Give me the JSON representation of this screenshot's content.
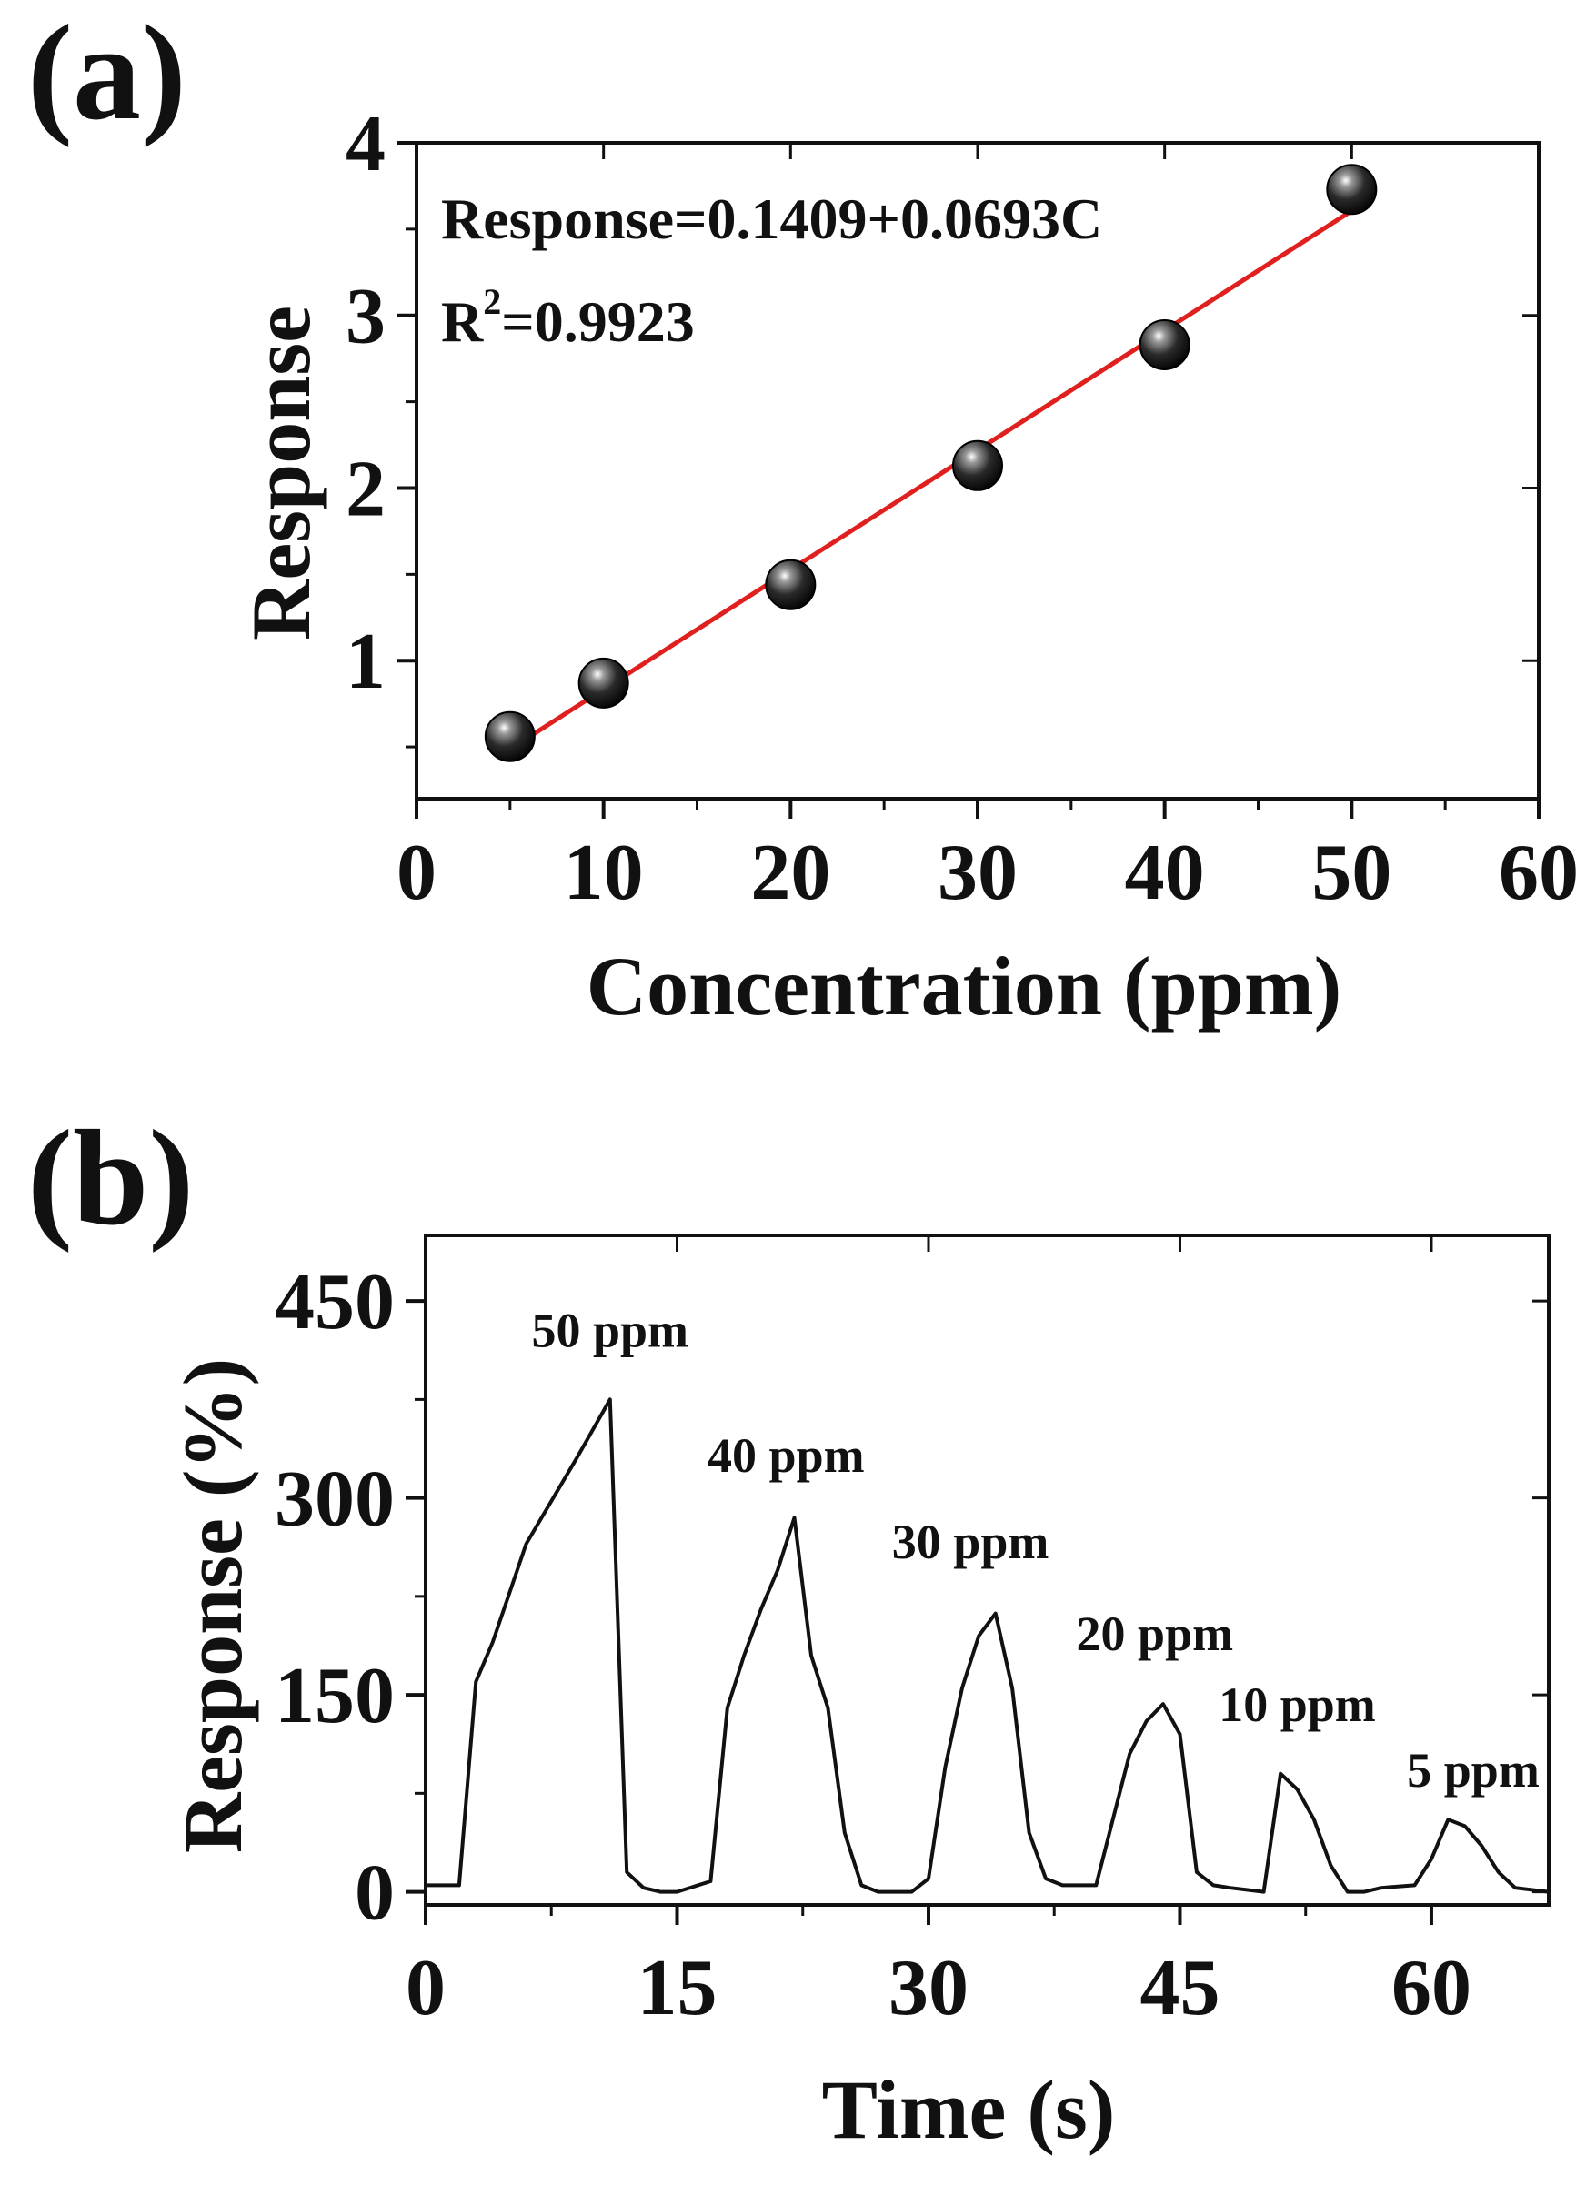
{
  "chart_data": [
    {
      "type": "scatter",
      "panel_label": "(a)",
      "xlabel": "Concentration (ppm)",
      "ylabel": "Response",
      "xlim": [
        0,
        60
      ],
      "ylim": [
        0.2,
        4
      ],
      "xticks": [
        0,
        10,
        20,
        30,
        40,
        50,
        60
      ],
      "xtick_labels": [
        "0",
        "10",
        "20",
        "30",
        "40",
        "50",
        "60"
      ],
      "yticks": [
        1,
        2,
        3,
        4
      ],
      "ytick_labels": [
        "1",
        "2",
        "3",
        "4"
      ],
      "series": [
        {
          "name": "Response",
          "x": [
            5,
            10,
            20,
            30,
            40,
            50
          ],
          "y": [
            0.56,
            0.87,
            1.44,
            2.13,
            2.83,
            3.73
          ],
          "marker": "sphere",
          "color": "#111111"
        }
      ],
      "fit": {
        "intercept": 0.1409,
        "slope": 0.0693,
        "x_range": [
          5,
          50
        ],
        "color": "#e0201e",
        "equation_text": "Response=0.1409+0.0693C",
        "r2_prefix": "R",
        "r2_sup": "2",
        "r2_value": "=0.9923"
      },
      "grid": false
    },
    {
      "type": "line",
      "panel_label": "(b)",
      "xlabel": "Time (s)",
      "ylabel": "Response (%)",
      "xlim": [
        0,
        67
      ],
      "ylim": [
        -10,
        500
      ],
      "xticks": [
        0,
        15,
        30,
        45,
        60
      ],
      "xtick_labels": [
        "0",
        "15",
        "30",
        "45",
        "60"
      ],
      "yticks": [
        0,
        150,
        300,
        450
      ],
      "ytick_labels": [
        "0",
        "150",
        "300",
        "450"
      ],
      "series": [
        {
          "name": "Response (%)",
          "color": "#111111",
          "x": [
            0,
            2,
            3,
            4,
            6,
            9,
            11,
            12,
            13,
            14,
            15,
            17,
            18,
            19,
            20,
            21,
            22,
            23,
            24,
            25,
            26,
            27,
            29,
            30,
            31,
            32,
            33,
            34,
            35,
            36,
            37,
            38,
            40,
            41,
            42,
            43,
            44,
            45,
            46,
            47,
            48,
            50,
            51,
            52,
            53,
            54,
            55,
            56,
            57,
            59,
            60,
            61,
            62,
            63,
            64,
            65,
            67
          ],
          "y": [
            5,
            5,
            160,
            190,
            265,
            330,
            375,
            15,
            3,
            0,
            0,
            8,
            140,
            180,
            215,
            245,
            285,
            180,
            140,
            45,
            5,
            0,
            0,
            10,
            95,
            155,
            195,
            212,
            155,
            45,
            10,
            5,
            5,
            55,
            105,
            130,
            143,
            120,
            15,
            5,
            3,
            0,
            90,
            78,
            55,
            20,
            0,
            0,
            3,
            5,
            25,
            55,
            50,
            35,
            15,
            3,
            0
          ]
        }
      ],
      "annotations": [
        {
          "text": "50 ppm",
          "x": 11,
          "y": 415
        },
        {
          "text": "40 ppm",
          "x": 21.5,
          "y": 320
        },
        {
          "text": "30 ppm",
          "x": 32.5,
          "y": 254
        },
        {
          "text": "20 ppm",
          "x": 43.5,
          "y": 184
        },
        {
          "text": "10 ppm",
          "x": 52,
          "y": 130
        },
        {
          "text": "5 ppm",
          "x": 62.5,
          "y": 80
        }
      ],
      "grid": false
    }
  ]
}
